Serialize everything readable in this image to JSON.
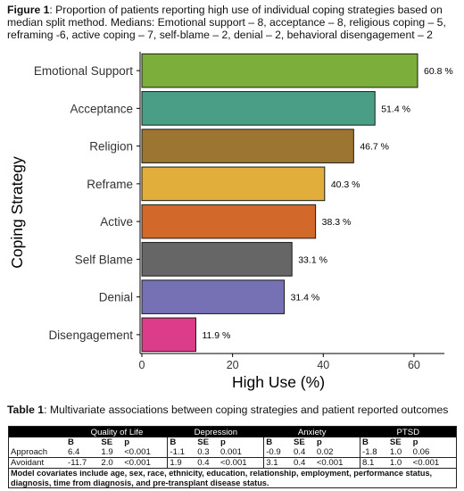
{
  "figure_caption": {
    "label": "Figure 1",
    "text": ": Proportion of patients reporting high use of individual coping strategies based on median split method. Medians: Emotional support – 8, acceptance – 8, religious coping – 5, reframing -6, active coping – 7, self-blame – 2, denial – 2, behavioral disengagement – 2"
  },
  "chart_data": {
    "type": "bar",
    "orientation": "horizontal",
    "categories": [
      "Emotional Support",
      "Acceptance",
      "Religion",
      "Reframe",
      "Active",
      "Self Blame",
      "Denial",
      "Disengagement"
    ],
    "values": [
      60.8,
      51.4,
      46.7,
      40.3,
      38.3,
      33.1,
      31.4,
      11.9
    ],
    "data_labels": [
      "60.8 %",
      "51.4 %",
      "46.7 %",
      "40.3 %",
      "38.3 %",
      "33.1 %",
      "31.4 %",
      "11.9 %"
    ],
    "colors": [
      "#7cae3b",
      "#4a9e85",
      "#9c7630",
      "#e1ae3b",
      "#d2692a",
      "#666666",
      "#7670b5",
      "#db3d8a"
    ],
    "xlabel": "High Use (%)",
    "ylabel": "Coping Strategy",
    "xlim": [
      0,
      65
    ],
    "xticks": [
      0,
      20,
      40,
      60
    ],
    "xtick_labels": [
      "0",
      "20",
      "40",
      "60"
    ],
    "grid": false,
    "legend": "none"
  },
  "table_caption": {
    "label": "Table 1",
    "text": ": Multivariate associations between coping strategies and patient reported outcomes"
  },
  "table": {
    "groups": [
      "Quality of Life",
      "Depression",
      "Anxiety",
      "PTSD"
    ],
    "subheaders": [
      "B",
      "SE",
      "p"
    ],
    "rows": [
      {
        "label": "Approach",
        "cells": [
          "6.4",
          "1.9",
          "<0.001",
          "-1.1",
          "0.3",
          "0.001",
          "-0.9",
          "0.4",
          "0.02",
          "-1.8",
          "1.0",
          "0.06"
        ]
      },
      {
        "label": "Avoidant",
        "cells": [
          "-11.7",
          "2.0",
          "<0.001",
          "1.9",
          "0.4",
          "<0.001",
          "3.1",
          "0.4",
          "<0.001",
          "8.1",
          "1.0",
          "<0.001"
        ]
      }
    ],
    "footnote": "Model covariates include age, sex, race, ethnicity, education, relationship, employment, performance status, diagnosis, time from diagnosis, and pre-transplant disease status."
  }
}
